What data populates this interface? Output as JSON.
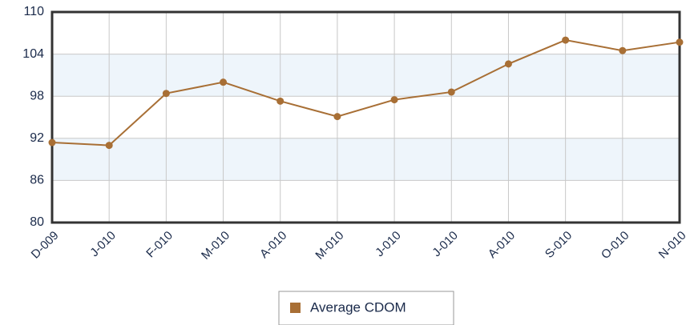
{
  "chart_data": {
    "type": "line",
    "categories": [
      "D-009",
      "J-010",
      "F-010",
      "M-010",
      "A-010",
      "M-010",
      "J-010",
      "J-010",
      "A-010",
      "S-010",
      "O-010",
      "N-010"
    ],
    "series": [
      {
        "name": "Average CDOM",
        "color": "#a86f35",
        "values": [
          91.4,
          91.0,
          98.4,
          100.0,
          97.3,
          95.1,
          97.5,
          98.6,
          102.6,
          106.0,
          104.5,
          105.7
        ]
      }
    ],
    "ylim": [
      80,
      110
    ],
    "yticks": [
      80,
      86,
      92,
      98,
      104,
      110
    ],
    "grid": true
  }
}
